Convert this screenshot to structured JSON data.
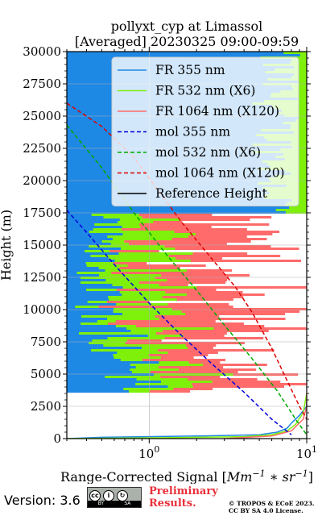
{
  "title_line1": "pollyxt_cyp at Limassol",
  "title_line2": "[Averaged] 20230325 09:00-09:59",
  "footer": {
    "version": "Version: 3.6",
    "cc_labels": [
      "cc",
      "BY",
      "SA"
    ],
    "preliminary_line1": "Preliminary",
    "preliminary_line2": "Results.",
    "copyright_line1": "© TROPOS & ECoE 2023.",
    "copyright_line2": "CC BY SA 4.0 License."
  },
  "colors": {
    "fr355": "#1e88e5",
    "fr532": "#7ef00a",
    "fr1064": "#ff6b6b",
    "mol355": "#0000dd",
    "mol532": "#00aa00",
    "mol1064": "#dd0000",
    "ref": "#000000",
    "prelim": "#e8303a"
  },
  "chart_data": {
    "type": "line",
    "title": "pollyxt_cyp at Limassol\n[Averaged] 20230325 09:00-09:59",
    "xlabel": "Range-Corrected Signal [Mm^-1 * sr^-1]",
    "ylabel": "Height (m)",
    "xscale": "log",
    "xlim": [
      0.3,
      10
    ],
    "ylim": [
      0,
      30000
    ],
    "xticks": [
      {
        "value": 1,
        "label": "10^0"
      },
      {
        "value": 10,
        "label": "10^1"
      }
    ],
    "yticks": [
      0,
      2500,
      5000,
      7500,
      10000,
      12500,
      15000,
      17500,
      20000,
      22500,
      25000,
      27500,
      30000
    ],
    "grid": true,
    "legend_position": "top-right",
    "series": [
      {
        "name": "FR 355 nm",
        "style": "solid",
        "colorKey": "fr355",
        "x": [
          0.3,
          0.5,
          2.0,
          5.0,
          6.5,
          7.5,
          8.0,
          9.0,
          10.0,
          10.0
        ],
        "y": [
          0,
          100,
          200,
          300,
          500,
          800,
          1200,
          1800,
          2500,
          3500
        ]
      },
      {
        "name": "FR 532 nm (X6)",
        "style": "solid",
        "colorKey": "fr532",
        "x": [
          0.3,
          1.5,
          4.0,
          6.0,
          7.5,
          8.5,
          9.5,
          10.0
        ],
        "y": [
          0,
          80,
          150,
          300,
          600,
          1100,
          2000,
          3500
        ]
      },
      {
        "name": "FR 1064 nm (X120)",
        "style": "solid",
        "colorKey": "fr1064",
        "x": [
          3.0,
          6.0,
          8.0,
          9.5,
          10.0,
          10.0
        ],
        "y": [
          0,
          200,
          600,
          1500,
          2500,
          3500
        ]
      },
      {
        "name": "mol 355 nm",
        "style": "dashed",
        "colorKey": "mol355",
        "x": [
          0.3,
          0.4,
          0.6,
          1.0,
          1.6,
          2.5,
          4.0,
          6.0,
          8.0
        ],
        "y": [
          17700,
          16000,
          13500,
          10500,
          8000,
          5800,
          3600,
          1500,
          300
        ]
      },
      {
        "name": "mol 532 nm (X6)",
        "style": "dashed",
        "colorKey": "mol532",
        "x": [
          0.3,
          0.5,
          0.8,
          1.3,
          2.0,
          3.0,
          4.5,
          6.5,
          8.5,
          10.0
        ],
        "y": [
          24300,
          21000,
          17500,
          14200,
          11500,
          8800,
          6200,
          3700,
          1500,
          300
        ]
      },
      {
        "name": "mol 1064 nm (X120)",
        "style": "dashed",
        "colorKey": "mol1064",
        "x": [
          0.3,
          0.5,
          0.8,
          1.1,
          1.6,
          2.4,
          3.5,
          4.5,
          6.0,
          7.5,
          9.0,
          10.0
        ],
        "y": [
          26000,
          24200,
          21800,
          19500,
          16800,
          14200,
          11800,
          9800,
          7000,
          4500,
          2500,
          1500
        ]
      },
      {
        "name": "Reference Height",
        "style": "solid",
        "colorKey": "ref",
        "x": [],
        "y": []
      }
    ]
  }
}
